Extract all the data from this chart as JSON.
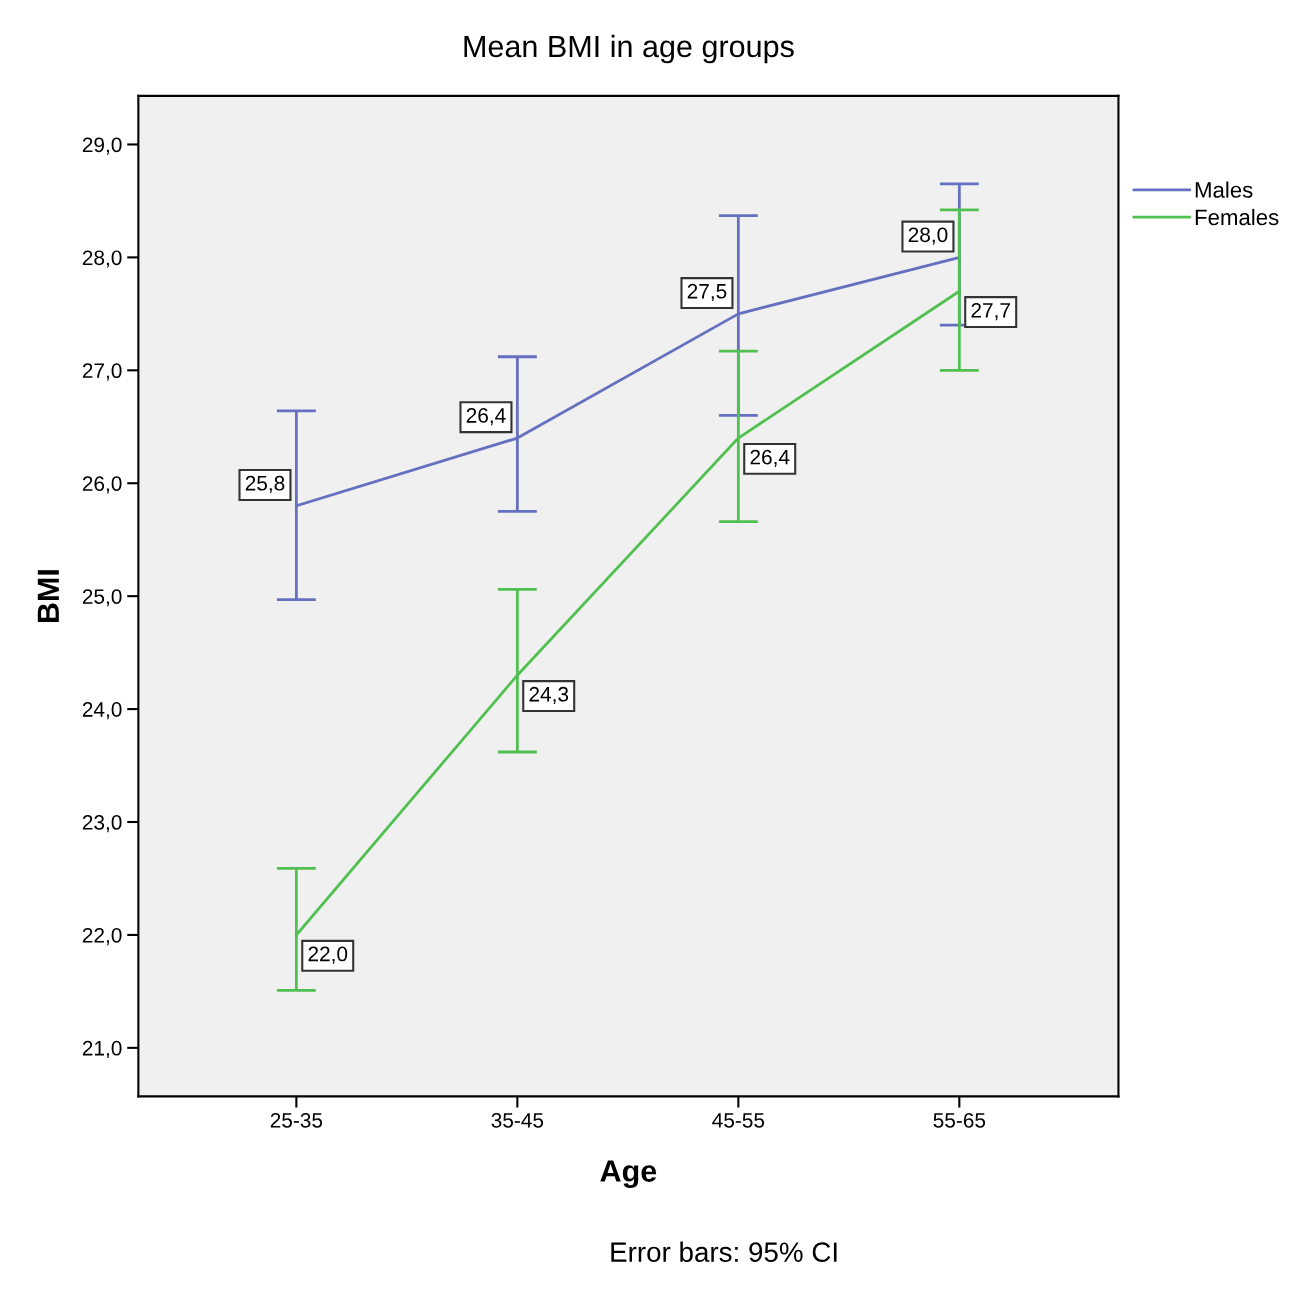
{
  "chart_data": {
    "type": "line",
    "title": "Mean BMI in age groups",
    "xlabel": "Age",
    "ylabel": "BMI",
    "categories": [
      "25-35",
      "35-45",
      "45-55",
      "55-65"
    ],
    "series": [
      {
        "name": "Males",
        "color": "#6570c0",
        "values": [
          25.8,
          26.4,
          27.5,
          28.0
        ],
        "value_labels": [
          "25,8",
          "26,4",
          "27,5",
          "28,0"
        ],
        "errors": [
          [
            24.97,
            26.64
          ],
          [
            25.75,
            27.12
          ],
          [
            26.6,
            28.37
          ],
          [
            27.4,
            28.65
          ]
        ]
      },
      {
        "name": "Females",
        "color": "#50c050",
        "values": [
          22.0,
          24.3,
          26.4,
          27.7
        ],
        "value_labels": [
          "22,0",
          "24,3",
          "26,4",
          "27,7"
        ],
        "errors": [
          [
            21.51,
            22.59
          ],
          [
            23.62,
            25.06
          ],
          [
            25.66,
            27.17
          ],
          [
            27.0,
            28.42
          ]
        ]
      }
    ],
    "ylim": [
      20.57,
      29.43
    ],
    "yticks": [
      {
        "value": 21,
        "label": "21,0"
      },
      {
        "value": 22,
        "label": "22,0"
      },
      {
        "value": 23,
        "label": "23,0"
      },
      {
        "value": 24,
        "label": "24,0"
      },
      {
        "value": 25,
        "label": "25,0"
      },
      {
        "value": 26,
        "label": "26,0"
      },
      {
        "value": 27,
        "label": "27,0"
      },
      {
        "value": 28,
        "label": "28,0"
      },
      {
        "value": 29,
        "label": "29,0"
      }
    ],
    "grid": false,
    "legend": "top right",
    "line_style": "solid",
    "annotations": [
      "Error bars: 95% CI"
    ]
  }
}
